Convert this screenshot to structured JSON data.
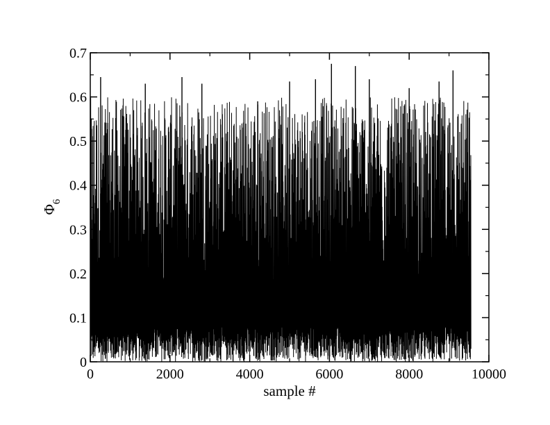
{
  "chart_data": {
    "type": "line",
    "title": "",
    "xlabel": "sample #",
    "ylabel": "Φ",
    "ylabel_subscript": "6",
    "xlim": [
      0,
      10000
    ],
    "ylim": [
      0,
      0.7
    ],
    "x_ticks": [
      0,
      2000,
      4000,
      6000,
      8000,
      10000
    ],
    "y_ticks": [
      0,
      0.1,
      0.2,
      0.3,
      0.4,
      0.5,
      0.6,
      0.7
    ],
    "x_tick_labels": [
      "0",
      "2000",
      "4000",
      "6000",
      "8000",
      "10000"
    ],
    "y_tick_labels": [
      "0",
      "0.1",
      "0.2",
      "0.3",
      "0.4",
      "0.5",
      "0.6",
      "0.7"
    ],
    "grid": false,
    "legend": "none",
    "series_color": "#000000",
    "series": [
      {
        "x_start": 0,
        "x_end": 9550,
        "typical_range": [
          0.0,
          0.6
        ],
        "peak_values": [
          {
            "x": 260,
            "y": 0.645
          },
          {
            "x": 1380,
            "y": 0.63
          },
          {
            "x": 2300,
            "y": 0.645
          },
          {
            "x": 2800,
            "y": 0.63
          },
          {
            "x": 4200,
            "y": 0.59
          },
          {
            "x": 5000,
            "y": 0.635
          },
          {
            "x": 5650,
            "y": 0.64
          },
          {
            "x": 6050,
            "y": 0.675
          },
          {
            "x": 6650,
            "y": 0.67
          },
          {
            "x": 7000,
            "y": 0.64
          },
          {
            "x": 8000,
            "y": 0.62
          },
          {
            "x": 8750,
            "y": 0.635
          },
          {
            "x": 9100,
            "y": 0.66
          }
        ]
      }
    ]
  }
}
